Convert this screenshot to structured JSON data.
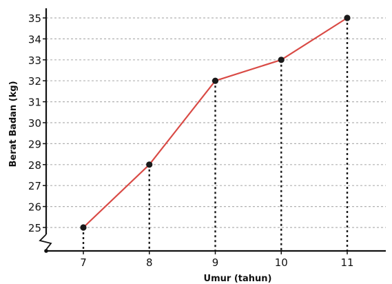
{
  "chart_data": {
    "type": "line",
    "title": "",
    "xlabel": "Umur (tahun)",
    "ylabel": "Berat Badan (kg)",
    "x": [
      7,
      8,
      9,
      10,
      11
    ],
    "x_tick_labels": [
      "7",
      "8",
      "9",
      "10",
      "11"
    ],
    "y_ticks": [
      25,
      26,
      27,
      28,
      29,
      30,
      31,
      32,
      33,
      34,
      35
    ],
    "y_tick_labels": [
      "25",
      "26",
      "27",
      "28",
      "29",
      "30",
      "31",
      "32",
      "33",
      "34",
      "35"
    ],
    "ylim": [
      25,
      35
    ],
    "xlim": [
      7,
      11
    ],
    "series": [
      {
        "values": [
          25,
          28,
          32,
          33,
          35
        ],
        "color": "#d94a45"
      }
    ],
    "grid": "horizontal dashed",
    "drop_lines": "vertical dotted from each point to x-axis",
    "y_axis_break": true,
    "legend": "none"
  },
  "colors": {
    "line": "#d94a45",
    "marker": "#1a1a1a",
    "axis": "#111111",
    "grid": "#b0b0b0"
  }
}
